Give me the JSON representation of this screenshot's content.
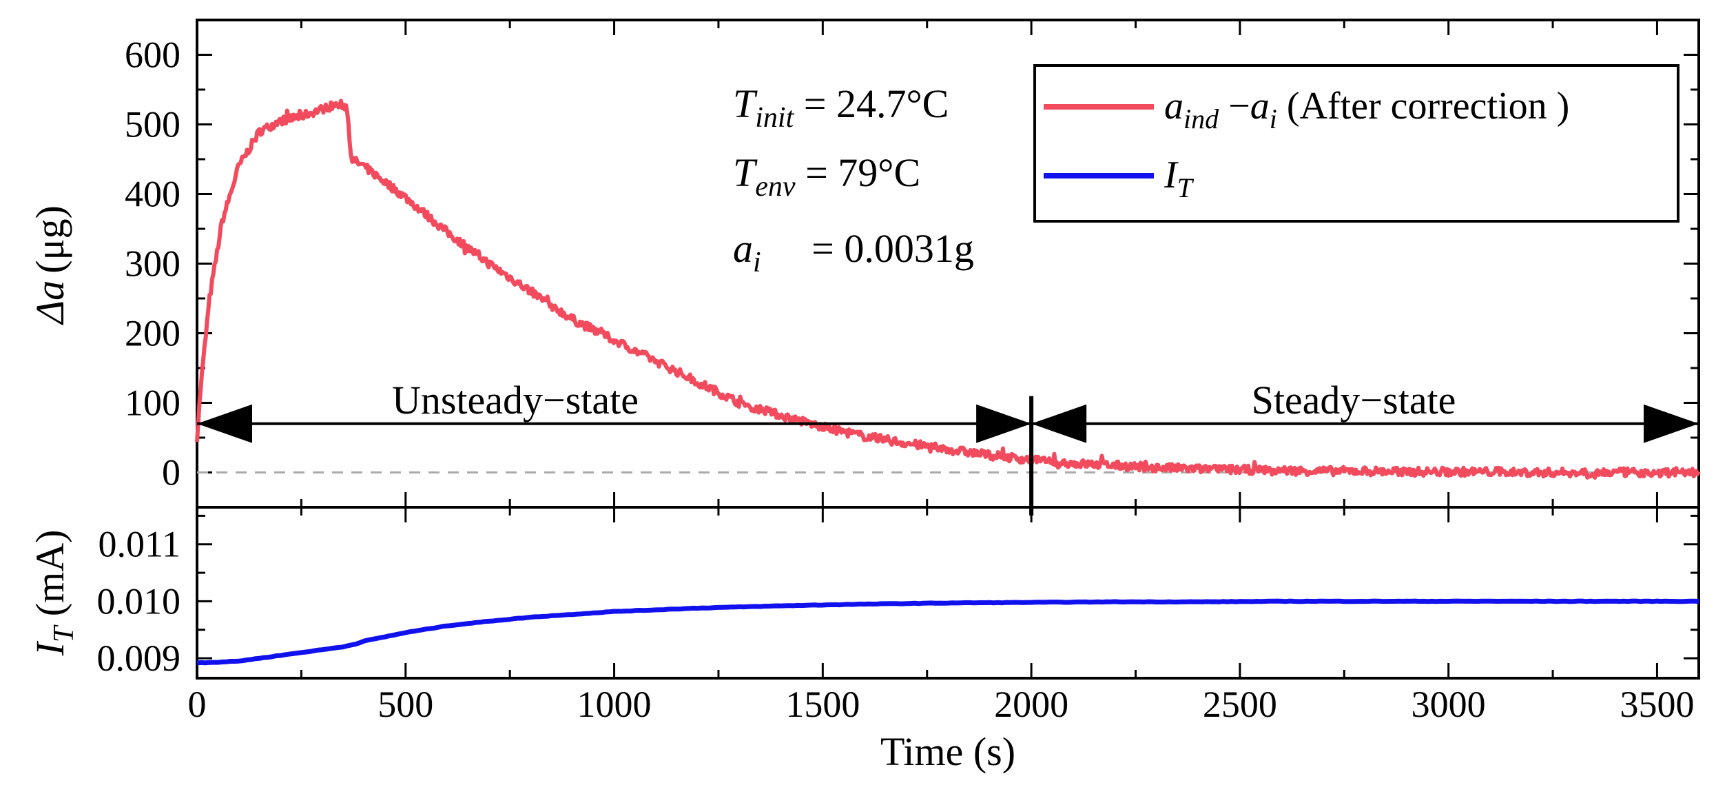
{
  "chart_data": [
    {
      "type": "line",
      "panel": "top",
      "ylabel_symbol": "Δa",
      "ylabel_unit": "(μg)",
      "ylim": [
        -50,
        650
      ],
      "yticks": [
        0,
        100,
        200,
        300,
        400,
        500,
        600
      ],
      "xlim": [
        0,
        3600
      ],
      "series": [
        {
          "name": "a_ind − a_i (After correction )",
          "color": "#f24b5e",
          "x": [
            0,
            10,
            30,
            60,
            100,
            150,
            200,
            250,
            300,
            340,
            360,
            370,
            400,
            500,
            600,
            700,
            800,
            900,
            1000,
            1100,
            1200,
            1300,
            1400,
            1500,
            1600,
            1700,
            1800,
            1900,
            2000,
            2100,
            2200,
            2300,
            2400,
            2500,
            2600,
            2700,
            2800,
            2900,
            3000,
            3100,
            3200,
            3300,
            3400,
            3500,
            3600
          ],
          "values": [
            50,
            130,
            250,
            360,
            440,
            490,
            505,
            512,
            522,
            530,
            525,
            450,
            440,
            395,
            345,
            300,
            260,
            220,
            190,
            160,
            130,
            100,
            82,
            65,
            52,
            42,
            33,
            25,
            18,
            13,
            10,
            7,
            5,
            4,
            3,
            2,
            2,
            1,
            1,
            1,
            0,
            0,
            0,
            0,
            0
          ]
        }
      ],
      "reference_line": 0,
      "annotations": {
        "t_init": {
          "symbol": "T",
          "sub": "init",
          "text": " = 24.7°C"
        },
        "t_env": {
          "symbol": "T",
          "sub": "env",
          "text": " = 79°C"
        },
        "a_i": {
          "symbol": "a",
          "sub": "i",
          "text": "   = 0.0031g"
        }
      },
      "regions": {
        "unsteady": {
          "label": "Unsteady−state",
          "from": 0,
          "to": 2000
        },
        "steady": {
          "label": "Steady−state",
          "from": 2000,
          "to": 3600
        },
        "arrow_level": 70,
        "boundary": 2000
      },
      "legend": {
        "placement": "top-right",
        "entries": [
          {
            "symbol": "a",
            "sub": "ind",
            "mid": " −",
            "symbol2": "a",
            "sub2": "i",
            "text": " (After correction )",
            "color": "#f24b5e"
          },
          {
            "symbol": "I",
            "sub": "T",
            "color": "#1111ee"
          }
        ]
      }
    },
    {
      "type": "line",
      "panel": "bottom",
      "ylabel_symbol": "I",
      "ylabel_sub": "T",
      "ylabel_unit": " (mA)",
      "ylim": [
        0.00865,
        0.01165
      ],
      "yticks": [
        0.009,
        0.01,
        0.011
      ],
      "ytick_labels": [
        "0.009",
        "0.010",
        "0.011"
      ],
      "xlim": [
        0,
        3600
      ],
      "xticks": [
        0,
        500,
        1000,
        1500,
        2000,
        2500,
        3000,
        3500
      ],
      "xlabel": "Time (s)",
      "series": [
        {
          "name": "I_T",
          "color": "#1111ee",
          "x": [
            0,
            50,
            100,
            150,
            200,
            300,
            350,
            380,
            400,
            500,
            600,
            700,
            800,
            900,
            1000,
            1200,
            1400,
            1600,
            1800,
            2000,
            2200,
            2400,
            2600,
            2800,
            3000,
            3200,
            3400,
            3600
          ],
          "values": [
            0.00892,
            0.00893,
            0.00895,
            0.009,
            0.00905,
            0.00915,
            0.0092,
            0.00925,
            0.0093,
            0.00945,
            0.00957,
            0.00965,
            0.00972,
            0.00977,
            0.00982,
            0.00988,
            0.00992,
            0.00995,
            0.00997,
            0.00998,
            0.00999,
            0.00999,
            0.01,
            0.01,
            0.01,
            0.01,
            0.01,
            0.01
          ]
        }
      ]
    }
  ]
}
